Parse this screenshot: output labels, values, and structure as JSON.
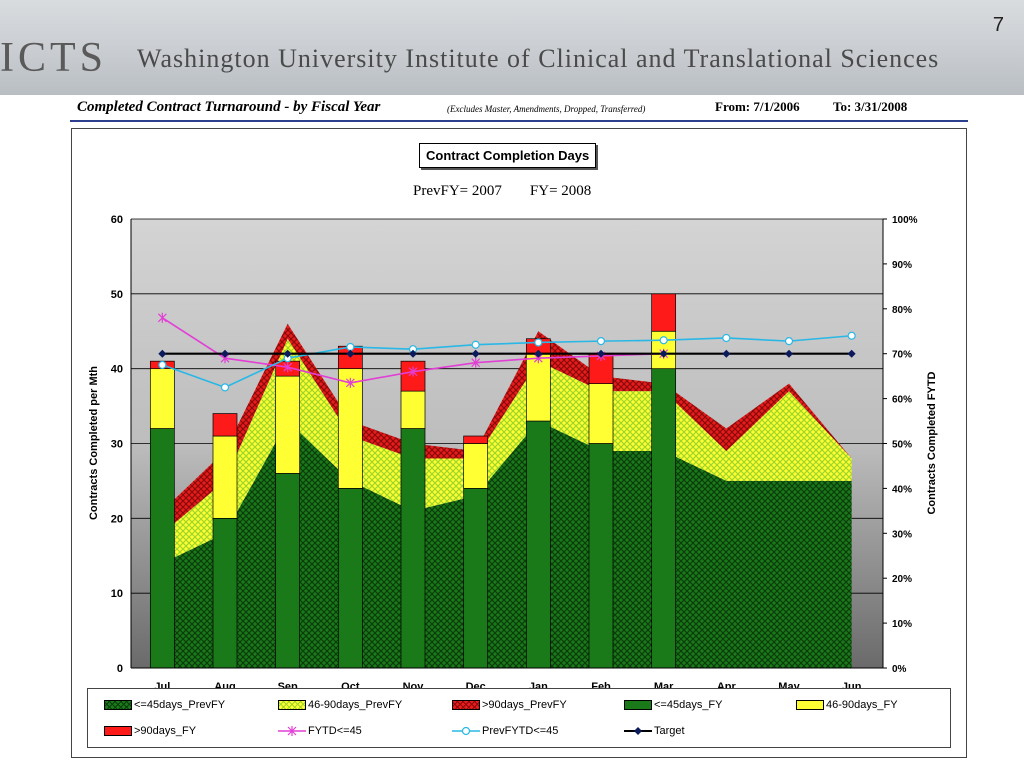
{
  "header": {
    "logo": "ICTS",
    "institute": "Washington University Institute of Clinical and Translational Sciences",
    "slide_number": "7"
  },
  "report": {
    "title": "Completed Contract Turnaround - by Fiscal Year",
    "note": "(Excludes Master, Amendments, Dropped, Transferred)",
    "from": "From:  7/1/2006",
    "to": "To:  3/31/2008"
  },
  "chart_data": {
    "type": "bar",
    "title": "Contract Completion Days",
    "subtitle_prev": "PrevFY= 2007",
    "subtitle_curr": "FY= 2008",
    "ylabel": "Contracts Completed per Mth",
    "y2label": "Contracts Completed FYTD",
    "ylim": [
      0,
      60
    ],
    "yticks": [
      "0",
      "10",
      "20",
      "30",
      "40",
      "50",
      "60"
    ],
    "y2lim": [
      0,
      100
    ],
    "y2ticks": [
      "0%",
      "10%",
      "20%",
      "30%",
      "40%",
      "50%",
      "60%",
      "70%",
      "80%",
      "90%",
      "100%"
    ],
    "categories": [
      "Jul",
      "Aug",
      "Sep",
      "Oct",
      "Nov",
      "Dec",
      "Jan",
      "Feb",
      "Mar",
      "Apr",
      "May",
      "Jun"
    ],
    "area_series": [
      {
        "name": "<=45days_PrevFY",
        "values": [
          14,
          18,
          33,
          25,
          21,
          23,
          33,
          29,
          29,
          25,
          25,
          25
        ],
        "color": "#1a7a1a"
      },
      {
        "name": "46-90days_PrevFY",
        "values": [
          4,
          7,
          11,
          6,
          7,
          5,
          8,
          8,
          8,
          4,
          12,
          3
        ],
        "color": "#ffff33"
      },
      {
        "name": ">90days_PrevFY",
        "values": [
          3,
          4,
          2,
          2,
          2,
          1,
          4,
          2,
          1,
          3,
          1,
          0
        ],
        "color": "#e81c1c"
      }
    ],
    "bar_series": [
      {
        "name": "<=45days_FY",
        "values": [
          32,
          20,
          26,
          24,
          32,
          24,
          33,
          30,
          40,
          null,
          null,
          null
        ],
        "color": "#1a7a1a"
      },
      {
        "name": "46-90days_FY",
        "values": [
          8,
          11,
          13,
          16,
          5,
          6,
          9,
          8,
          5,
          null,
          null,
          null
        ],
        "color": "#ffff33"
      },
      {
        "name": ">90days_FY",
        "values": [
          1,
          3,
          2,
          3,
          4,
          1,
          2,
          4,
          5,
          null,
          null,
          null
        ],
        "color": "#ff1a1a"
      }
    ],
    "line_series": [
      {
        "name": "FYTD<=45",
        "values": [
          78,
          69,
          67,
          63.5,
          66,
          68,
          69,
          69.5,
          70,
          null,
          null,
          null
        ],
        "color": "#e23fd6"
      },
      {
        "name": "PrevFYTD<=45",
        "values": [
          67.5,
          62.5,
          69,
          71.5,
          71,
          72,
          72.5,
          72.8,
          73,
          73.5,
          72.8,
          74
        ],
        "color": "#29b8e6"
      },
      {
        "name": "Target",
        "values": [
          70,
          70,
          70,
          70,
          70,
          70,
          70,
          70,
          70,
          70,
          70,
          70
        ],
        "color": "#000000"
      }
    ],
    "grid": true,
    "legend_position": "bottom"
  }
}
